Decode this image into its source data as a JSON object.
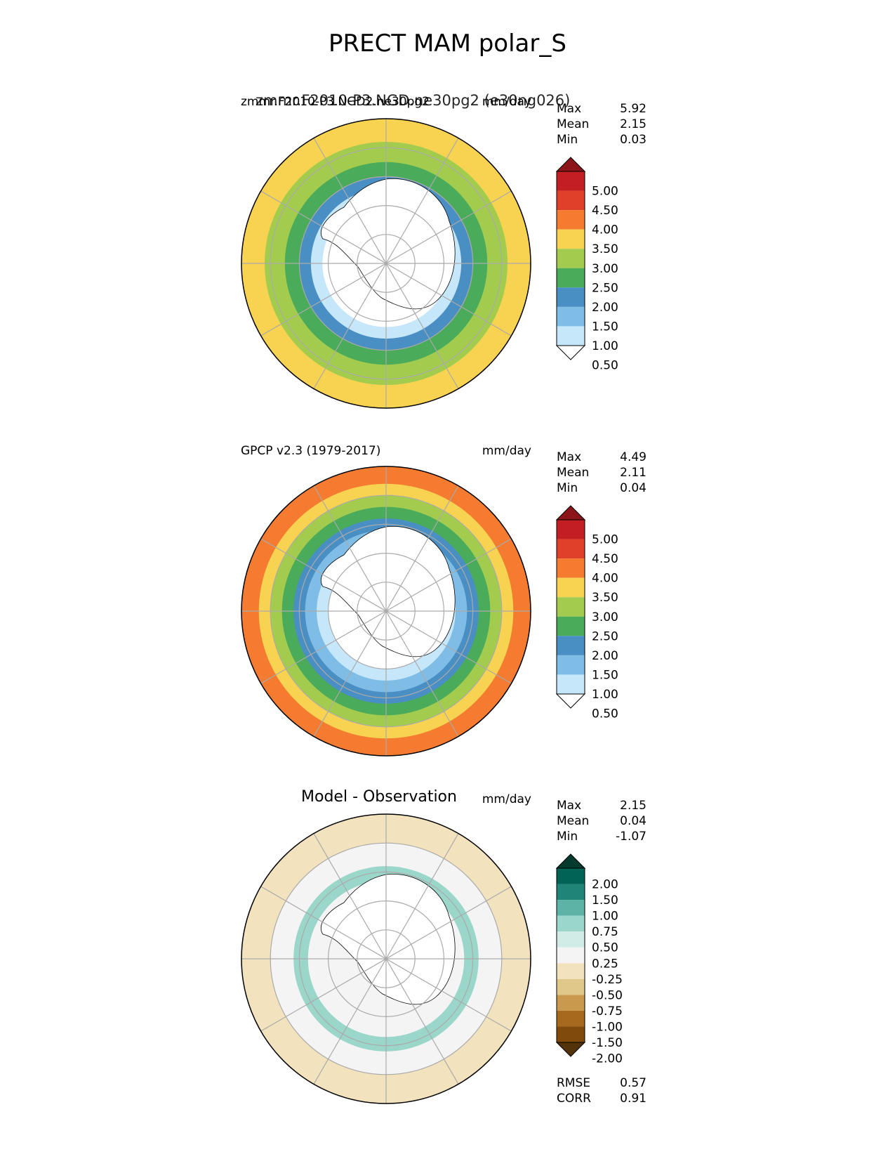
{
  "figure": {
    "title": "PRECT MAM polar_S"
  },
  "chart_data": [
    {
      "type": "heatmap",
      "projection": "south-polar-stereographic",
      "panel_title_left": "zmmr.F2010-P3.NGD2.ne30pg2",
      "panel_title_overprint": "zmmr.F2010-P3.NGD.ne30pg2 (e30ng026)",
      "panel_title_right": "mm/day",
      "stats": [
        {
          "label": "Max",
          "value": "5.92"
        },
        {
          "label": "Mean",
          "value": "2.15"
        },
        {
          "label": "Min",
          "value": "0.03"
        }
      ],
      "colorbar": {
        "extend": "both",
        "ticks": [
          "5.00",
          "4.50",
          "4.00",
          "3.50",
          "3.00",
          "2.50",
          "2.00",
          "1.50",
          "1.00",
          "0.50"
        ],
        "colors": [
          "#ffffff",
          "#c6e7fa",
          "#7fbde7",
          "#4a8fc3",
          "#4aab5a",
          "#a3cc4f",
          "#f8d351",
          "#f47b30",
          "#e0402a",
          "#c41e25",
          "#8b1518"
        ]
      },
      "bands": [
        {
          "outer_lat": -40,
          "color_index": 6
        },
        {
          "outer_lat": -48,
          "color_index": 5
        },
        {
          "outer_lat": -55,
          "color_index": 4
        },
        {
          "outer_lat": -60,
          "color_index": 3
        },
        {
          "outer_lat": -64,
          "color_index": 1
        },
        {
          "outer_lat": -68,
          "color_index": 0
        }
      ]
    },
    {
      "type": "heatmap",
      "projection": "south-polar-stereographic",
      "panel_title_left": "GPCP v2.3 (1979-2017)",
      "panel_title_right": "mm/day",
      "stats": [
        {
          "label": "Max",
          "value": "4.49"
        },
        {
          "label": "Mean",
          "value": "2.11"
        },
        {
          "label": "Min",
          "value": "0.04"
        }
      ],
      "colorbar": {
        "extend": "both",
        "ticks": [
          "5.00",
          "4.50",
          "4.00",
          "3.50",
          "3.00",
          "2.50",
          "2.00",
          "1.50",
          "1.00",
          "0.50"
        ],
        "colors": [
          "#ffffff",
          "#c6e7fa",
          "#7fbde7",
          "#4a8fc3",
          "#4aab5a",
          "#a3cc4f",
          "#f8d351",
          "#f47b30",
          "#e0402a",
          "#c41e25",
          "#8b1518"
        ]
      },
      "bands": [
        {
          "outer_lat": -40,
          "color_index": 7
        },
        {
          "outer_lat": -46,
          "color_index": 6
        },
        {
          "outer_lat": -50,
          "color_index": 5
        },
        {
          "outer_lat": -54,
          "color_index": 4
        },
        {
          "outer_lat": -58,
          "color_index": 3
        },
        {
          "outer_lat": -62,
          "color_index": 2
        },
        {
          "outer_lat": -66,
          "color_index": 1
        },
        {
          "outer_lat": -70,
          "color_index": 0
        }
      ]
    },
    {
      "type": "heatmap",
      "projection": "south-polar-stereographic",
      "panel_title_center": "Model - Observation",
      "panel_title_right": "mm/day",
      "stats": [
        {
          "label": "Max",
          "value": "2.15"
        },
        {
          "label": "Mean",
          "value": "0.04"
        },
        {
          "label": "Min",
          "value": "-1.07"
        }
      ],
      "bottom_stats": [
        {
          "label": "RMSE",
          "value": "0.57"
        },
        {
          "label": "CORR",
          "value": "0.91"
        }
      ],
      "colorbar": {
        "extend": "both",
        "ticks": [
          "2.00",
          "1.50",
          "1.00",
          "0.75",
          "0.50",
          "0.25",
          "-0.25",
          "-0.50",
          "-0.75",
          "-1.00",
          "-1.50",
          "-2.00"
        ],
        "colors": [
          "#533309",
          "#7f4a0b",
          "#a6691d",
          "#c99a4d",
          "#e0c78a",
          "#f2e3be",
          "#f4f4f4",
          "#d1ece7",
          "#9bd6cb",
          "#5cb3a6",
          "#218478",
          "#016356",
          "#053a2f"
        ]
      },
      "bands": [
        {
          "outer_lat": -40,
          "color_index": 5
        },
        {
          "outer_lat": -50,
          "color_index": 6
        },
        {
          "outer_lat": -58,
          "color_index": 8
        },
        {
          "outer_lat": -63,
          "color_index": 6
        }
      ]
    }
  ]
}
